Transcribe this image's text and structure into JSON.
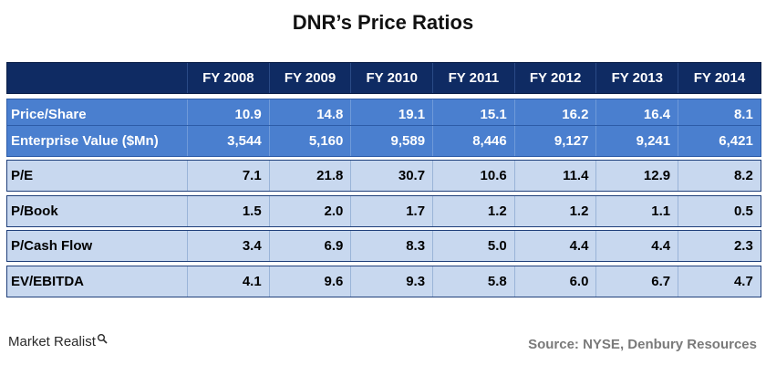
{
  "title": "DNR’s Price Ratios",
  "chart_data": {
    "type": "table",
    "columns": [
      "FY 2008",
      "FY 2009",
      "FY 2010",
      "FY 2011",
      "FY 2012",
      "FY 2013",
      "FY 2014"
    ],
    "rows": [
      {
        "label": "Price/Share",
        "values": [
          "10.9",
          "14.8",
          "19.1",
          "15.1",
          "16.2",
          "16.4",
          "8.1"
        ]
      },
      {
        "label": "Enterprise Value ($Mn)",
        "values": [
          "3,544",
          "5,160",
          "9,589",
          "8,446",
          "9,127",
          "9,241",
          "6,421"
        ]
      },
      {
        "label": "P/E",
        "values": [
          "7.1",
          "21.8",
          "30.7",
          "10.6",
          "11.4",
          "12.9",
          "8.2"
        ]
      },
      {
        "label": "P/Book",
        "values": [
          "1.5",
          "2.0",
          "1.7",
          "1.2",
          "1.2",
          "1.1",
          "0.5"
        ]
      },
      {
        "label": "P/Cash Flow",
        "values": [
          "3.4",
          "6.9",
          "8.3",
          "5.0",
          "4.4",
          "4.4",
          "2.3"
        ]
      },
      {
        "label": "EV/EBITDA",
        "values": [
          "4.1",
          "9.6",
          "9.3",
          "5.8",
          "6.0",
          "6.7",
          "4.7"
        ]
      }
    ]
  },
  "colors": {
    "header_bg": "#0f2b63",
    "price_rows_bg": "#4a7fcf",
    "ratio_rows_bg": "#c8d8ef",
    "source_text": "#7a7a7a"
  },
  "footer": {
    "logo_text": "Market Realist",
    "logo_icon": "magnifier-icon",
    "source": "Source: NYSE, Denbury Resources"
  }
}
